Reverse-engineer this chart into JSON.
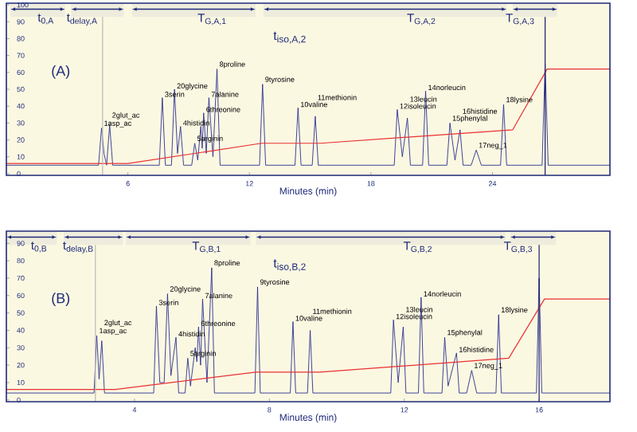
{
  "chart_data": [
    {
      "type": "line",
      "xlabel": "Minutes (min)",
      "xlim": [
        0,
        29.8
      ],
      "xticks": [
        6,
        12,
        18,
        24
      ],
      "ylim": [
        -1,
        101
      ],
      "yticks": [
        0,
        10,
        20,
        30,
        40,
        50,
        60,
        70,
        80,
        90,
        100
      ],
      "series": [
        {
          "color": "#2b2f8f",
          "x": [
            0,
            4.55,
            4.7,
            4.82,
            4.95,
            5.1,
            5.25,
            7.55,
            7.7,
            7.85,
            8.15,
            8.3,
            8.45,
            8.6,
            8.75,
            9.15,
            9.3,
            9.45,
            9.6,
            9.67,
            9.74,
            9.87,
            10.0,
            10.2,
            10.4,
            10.55,
            12.5,
            12.65,
            12.8,
            14.25,
            14.4,
            14.55,
            15.1,
            15.25,
            15.4,
            19.15,
            19.3,
            19.55,
            19.8,
            19.95,
            20.55,
            20.7,
            20.85,
            21.75,
            21.9,
            22.15,
            22.4,
            22.55,
            22.95,
            23.2,
            23.45,
            24.4,
            24.55,
            24.7,
            26.45,
            26.6,
            26.75,
            29.8
          ],
          "values": [
            5,
            5,
            27,
            12,
            5,
            29,
            5,
            5,
            45,
            5,
            5,
            50,
            12,
            28,
            5,
            5,
            18,
            8,
            28,
            15,
            36,
            12,
            45,
            10,
            62,
            5,
            5,
            53,
            5,
            5,
            39,
            5,
            5,
            34,
            5,
            5,
            38,
            10,
            33,
            5,
            5,
            49,
            5,
            5,
            30,
            8,
            26,
            5,
            5,
            14,
            5,
            5,
            41,
            5,
            5,
            65,
            5,
            5
          ]
        },
        {
          "color": "#e83030",
          "x": [
            0,
            6,
            12.6,
            15.5,
            25,
            26.7,
            29.8
          ],
          "values": [
            6,
            6,
            18,
            18,
            26,
            62,
            62
          ]
        }
      ],
      "ref_lines": [
        {
          "axis": "x",
          "value": 4.75,
          "color": "#b8b8b8"
        },
        {
          "axis": "x",
          "value": 26.6,
          "color": "#1a1a6e"
        }
      ],
      "bands": [
        {
          "axis": "x",
          "from": 0.2,
          "to": 2.9,
          "label": "t$_{0,A}$"
        },
        {
          "axis": "x",
          "from": 3.2,
          "to": 5.8,
          "label": "t$_{delay,A}$"
        },
        {
          "axis": "x",
          "from": 6.2,
          "to": 12.3,
          "label": "T$_{G,A,1}$"
        },
        {
          "axis": "x",
          "from": 12.7,
          "to": 24.7,
          "label": "T$_{G,A,2}$"
        },
        {
          "axis": "x",
          "from": 25,
          "to": 27.2,
          "label": "T$_{G,A,3}$"
        }
      ],
      "annotations": [
        "(A)",
        "t$_{iso,A,2}$",
        {
          "text": "1asp_ac",
          "x": 4.7,
          "y": 27
        },
        {
          "text": "2glut_ac",
          "x": 5.1,
          "y": 29
        },
        {
          "text": "3serin",
          "x": 7.7,
          "y": 45
        },
        {
          "text": "20glycine",
          "x": 8.3,
          "y": 50
        },
        {
          "text": "4histidin",
          "x": 8.6,
          "y": 28
        },
        {
          "text": "5arginin",
          "x": 9.3,
          "y": 18
        },
        {
          "text": "6threonine",
          "x": 9.74,
          "y": 36
        },
        {
          "text": "7alanine",
          "x": 10.0,
          "y": 45
        },
        {
          "text": "8proline",
          "x": 10.4,
          "y": 62
        },
        {
          "text": "9tyrosine",
          "x": 12.65,
          "y": 53
        },
        {
          "text": "10valine",
          "x": 14.4,
          "y": 39
        },
        {
          "text": "11methionin",
          "x": 15.25,
          "y": 34
        },
        {
          "text": "12isoleucin",
          "x": 19.3,
          "y": 38
        },
        {
          "text": "13leucin",
          "x": 19.8,
          "y": 33
        },
        {
          "text": "14norleucin",
          "x": 20.7,
          "y": 49
        },
        {
          "text": "15phenylal",
          "x": 21.9,
          "y": 30
        },
        {
          "text": "16histidine",
          "x": 22.4,
          "y": 26
        },
        {
          "text": "17neg_1",
          "x": 23.2,
          "y": 14
        },
        {
          "text": "18lysine",
          "x": 24.55,
          "y": 41
        }
      ]
    },
    {
      "type": "line",
      "xlabel": "Minutes (min)",
      "xlim": [
        0.2,
        18.1
      ],
      "xticks": [
        4,
        8,
        12,
        16
      ],
      "ylim": [
        -1,
        97
      ],
      "yticks": [
        0,
        10,
        20,
        30,
        40,
        50,
        60,
        70,
        80,
        90
      ],
      "series": [
        {
          "color": "#2b2f8f",
          "x": [
            0.2,
            2.8,
            2.88,
            2.95,
            3.03,
            3.11,
            4.57,
            4.65,
            4.75,
            4.88,
            4.98,
            5.08,
            5.23,
            5.31,
            5.5,
            5.58,
            5.66,
            5.8,
            5.85,
            5.9,
            5.96,
            6.02,
            6.15,
            6.29,
            6.37,
            7.57,
            7.65,
            7.73,
            8.62,
            8.7,
            8.78,
            9.13,
            9.21,
            9.29,
            11.6,
            11.68,
            11.82,
            11.97,
            12.05,
            12.42,
            12.5,
            12.58,
            13.12,
            13.2,
            13.3,
            13.55,
            13.63,
            13.85,
            14.0,
            14.15,
            14.72,
            14.8,
            14.88,
            15.92,
            16.0,
            16.08,
            18.1
          ],
          "values": [
            4,
            4,
            37,
            12,
            34,
            4,
            4,
            54,
            10,
            10,
            61,
            14,
            36,
            4,
            4,
            24,
            8,
            30,
            22,
            42,
            20,
            58,
            10,
            76,
            4,
            4,
            65,
            4,
            4,
            45,
            4,
            4,
            40,
            4,
            4,
            46,
            10,
            42,
            4,
            4,
            59,
            4,
            4,
            36,
            8,
            27,
            4,
            4,
            17,
            4,
            4,
            49,
            4,
            4,
            70,
            4,
            4
          ]
        },
        {
          "color": "#e83030",
          "x": [
            0.2,
            3.43,
            7.6,
            9.5,
            15.1,
            16.16,
            18.1
          ],
          "values": [
            6,
            6,
            16,
            16,
            24,
            58,
            58
          ]
        }
      ],
      "ref_lines": [
        {
          "axis": "x",
          "value": 2.84,
          "color": "#b8b8b8"
        },
        {
          "axis": "x",
          "value": 16.0,
          "color": "#1a1a6e"
        }
      ],
      "bands": [
        {
          "axis": "x",
          "from": 0.2,
          "to": 1.7,
          "label": "t$_{0,B}$"
        },
        {
          "axis": "x",
          "from": 1.9,
          "to": 3.66,
          "label": "t$_{delay,B}$"
        },
        {
          "axis": "x",
          "from": 3.74,
          "to": 7.44,
          "label": "T$_{G,B,1}$"
        },
        {
          "axis": "x",
          "from": 7.6,
          "to": 15.0,
          "label": "T$_{G,B,2}$"
        },
        {
          "axis": "x",
          "from": 15.14,
          "to": 16.5,
          "label": "T$_{G,B,3}$"
        }
      ],
      "annotations": [
        "(B)",
        "t$_{iso,B,2}$",
        {
          "text": "1asp_ac",
          "x": 2.88,
          "y": 37
        },
        {
          "text": "2glut_ac",
          "x": 3.03,
          "y": 34
        },
        {
          "text": "3serin",
          "x": 4.65,
          "y": 54
        },
        {
          "text": "20glycine",
          "x": 4.98,
          "y": 61
        },
        {
          "text": "4histidin",
          "x": 5.23,
          "y": 36
        },
        {
          "text": "5arginin",
          "x": 5.58,
          "y": 24
        },
        {
          "text": "6threonine",
          "x": 5.9,
          "y": 42
        },
        {
          "text": "7alanine",
          "x": 6.02,
          "y": 58
        },
        {
          "text": "8proline",
          "x": 6.29,
          "y": 76
        },
        {
          "text": "9tyrosine",
          "x": 7.65,
          "y": 65
        },
        {
          "text": "10valine",
          "x": 8.7,
          "y": 45
        },
        {
          "text": "11methionin",
          "x": 9.21,
          "y": 40
        },
        {
          "text": "12isoleucin",
          "x": 11.68,
          "y": 46
        },
        {
          "text": "13leucin",
          "x": 11.97,
          "y": 42
        },
        {
          "text": "14norleucin",
          "x": 12.5,
          "y": 59
        },
        {
          "text": "15phenylal",
          "x": 13.2,
          "y": 36
        },
        {
          "text": "16histidine",
          "x": 13.55,
          "y": 27
        },
        {
          "text": "17neg_1",
          "x": 14.0,
          "y": 17
        },
        {
          "text": "18lysine",
          "x": 14.8,
          "y": 49
        }
      ]
    }
  ]
}
